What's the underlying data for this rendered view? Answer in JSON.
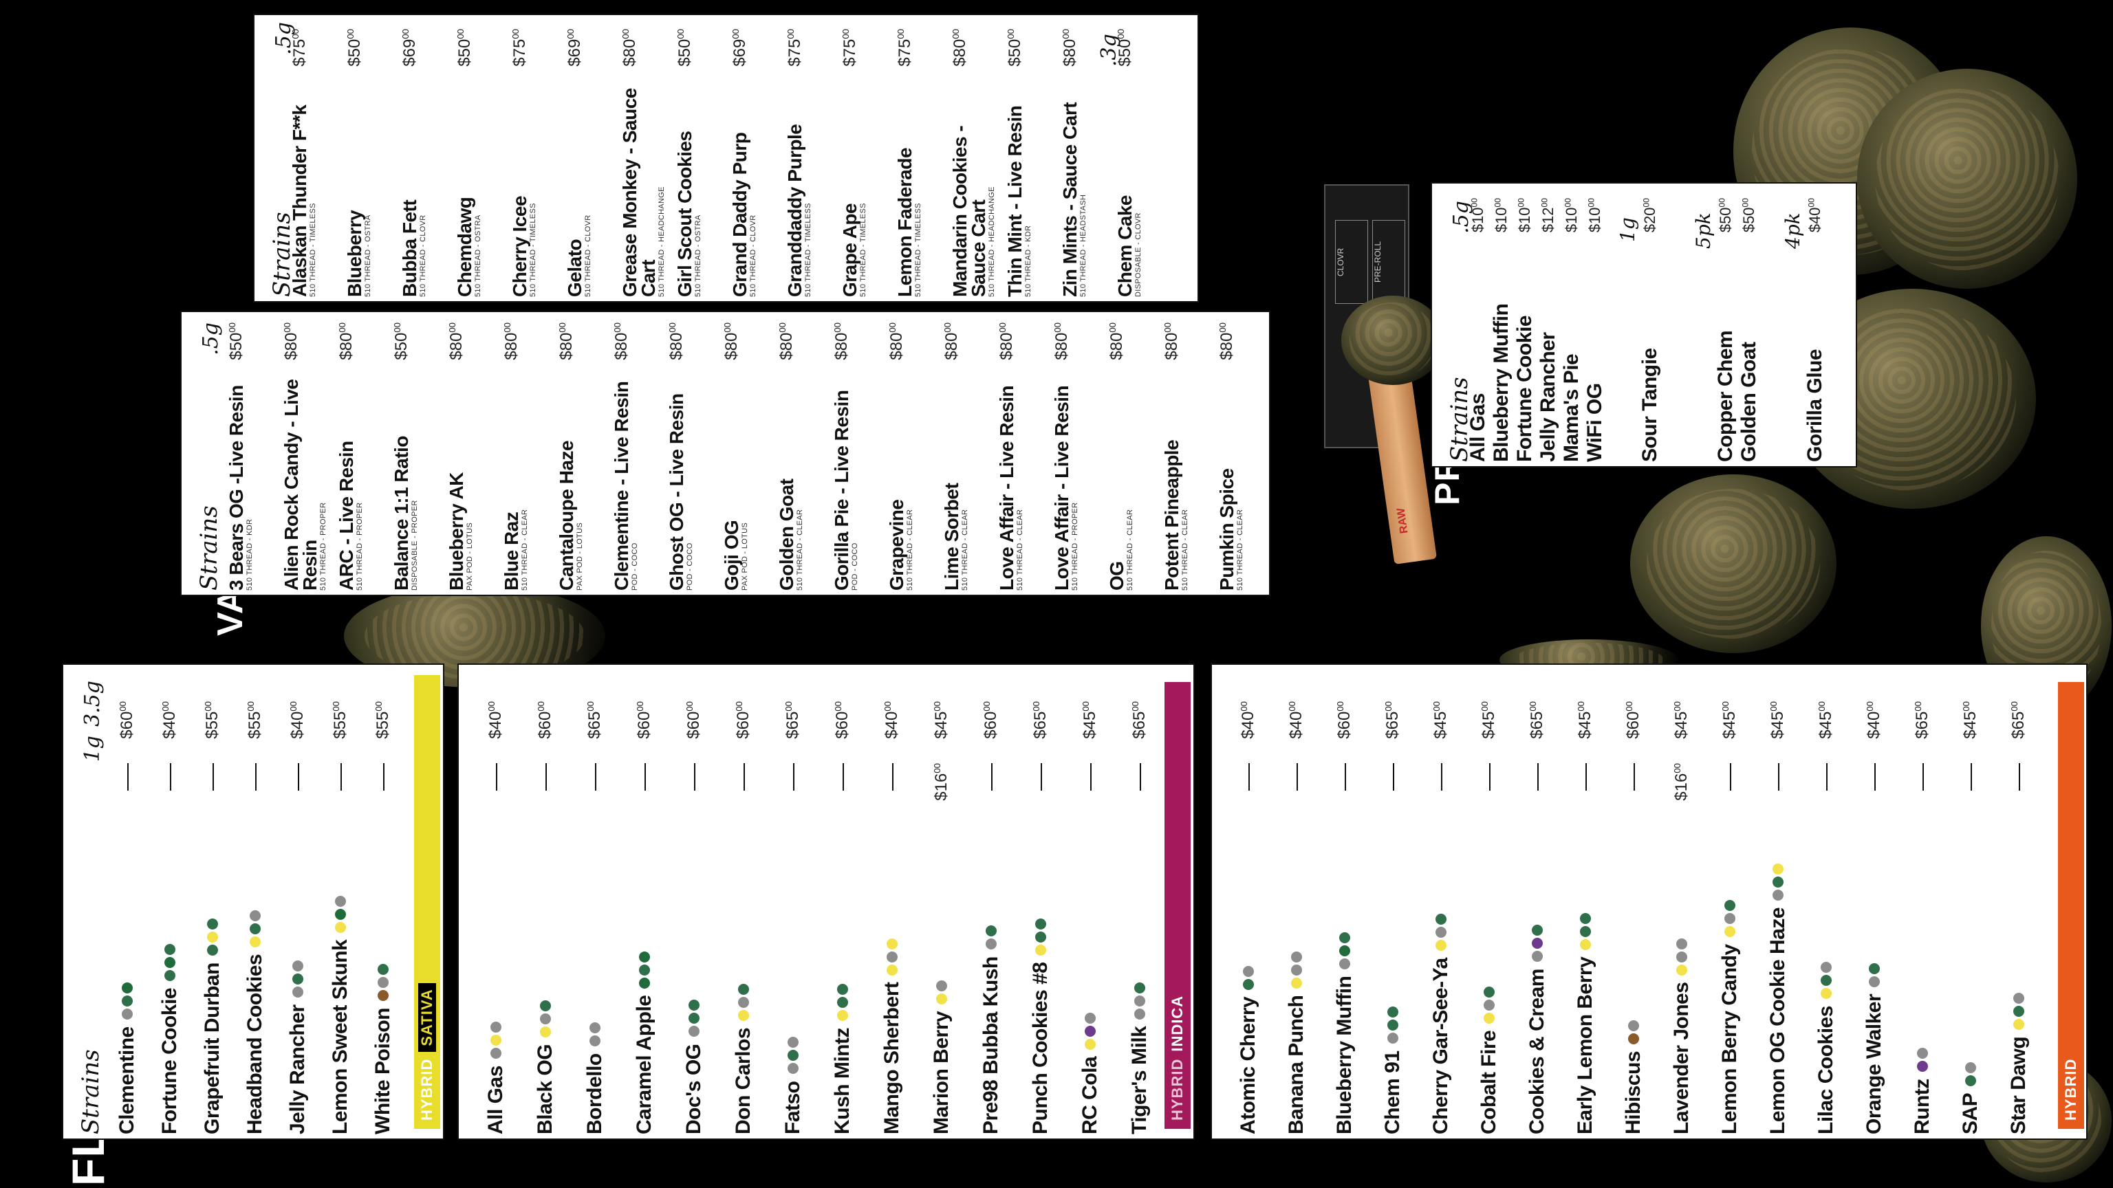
{
  "sections": {
    "flower": "FLOWER",
    "vape": "VAPE",
    "preroll": "PREROLL"
  },
  "headers": {
    "strains": "Strains",
    "flower_c1": "1g",
    "flower_c2": "3.5g",
    "vape_size": ".5g",
    "vape2_size": ".5g",
    "vape2_size_b": ".3g",
    "preroll_c1": ".5g",
    "preroll_c2": "1g",
    "preroll_c3": "5pk",
    "preroll_c4": "4pk"
  },
  "categories": {
    "sativa": "SATIVA",
    "sativa_hybrid": "HYBRID",
    "indica": "INDICA",
    "indica_hybrid": "HYBRID",
    "hybrid": "HYBRID"
  },
  "colors": {
    "sativa": "#e8dd2a",
    "indica": "#a3195b",
    "hybrid": "#e85a1c"
  },
  "flower_sativa": [
    {
      "name": "Clementine",
      "p1": "—",
      "p2": "$60",
      "icons": [
        "drop",
        "pine",
        "leaf"
      ]
    },
    {
      "name": "Fortune Cookie",
      "p1": "—",
      "p2": "$40",
      "icons": [
        "pine",
        "leaf",
        "pine"
      ]
    },
    {
      "name": "Grapefruit Durban",
      "p1": "—",
      "p2": "$55",
      "icons": [
        "pine",
        "lemon",
        "pine"
      ]
    },
    {
      "name": "Headband Cookies",
      "p1": "—",
      "p2": "$55",
      "icons": [
        "lemon",
        "pine",
        "drop"
      ]
    },
    {
      "name": "Jelly Rancher",
      "p1": "—",
      "p2": "$40",
      "icons": [
        "drop",
        "pine",
        "drop"
      ]
    },
    {
      "name": "Lemon Sweet Skunk",
      "p1": "—",
      "p2": "$55",
      "icons": [
        "lemon",
        "leaf",
        "drop"
      ]
    },
    {
      "name": "White Poison",
      "p1": "—",
      "p2": "$55",
      "icons": [
        "wood",
        "drop",
        "pine"
      ]
    }
  ],
  "flower_indica": [
    {
      "name": "All Gas",
      "p1": "—",
      "p2": "$40",
      "icons": [
        "drop",
        "lemon",
        "drop"
      ]
    },
    {
      "name": "Black OG",
      "p1": "—",
      "p2": "$60",
      "icons": [
        "lemon",
        "drop",
        "pine"
      ]
    },
    {
      "name": "Bordello",
      "p1": "—",
      "p2": "$65",
      "icons": [
        "drop",
        "drop"
      ]
    },
    {
      "name": "Caramel Apple",
      "p1": "—",
      "p2": "$60",
      "icons": [
        "leaf",
        "pine",
        "leaf"
      ]
    },
    {
      "name": "Doc's OG",
      "p1": "—",
      "p2": "$60",
      "icons": [
        "drop",
        "pine",
        "pine"
      ]
    },
    {
      "name": "Don Carlos",
      "p1": "—",
      "p2": "$60",
      "icons": [
        "lemon",
        "drop",
        "pine"
      ]
    },
    {
      "name": "Fatso",
      "p1": "—",
      "p2": "$65",
      "icons": [
        "drop",
        "pine",
        "drop"
      ]
    },
    {
      "name": "Kush Mintz",
      "p1": "—",
      "p2": "$60",
      "icons": [
        "lemon",
        "pine",
        "pine"
      ]
    },
    {
      "name": "Mango Sherbert",
      "p1": "—",
      "p2": "$40",
      "icons": [
        "lemon",
        "drop",
        "lemon"
      ]
    },
    {
      "name": "Marion Berry",
      "p1": "$16",
      "p2": "$45",
      "icons": [
        "lemon",
        "drop"
      ]
    },
    {
      "name": "Pre98 Bubba Kush",
      "p1": "—",
      "p2": "$60",
      "icons": [
        "drop",
        "pine"
      ]
    },
    {
      "name": "Punch Cookies #8",
      "p1": "—",
      "p2": "$65",
      "icons": [
        "lemon",
        "pine",
        "pine"
      ]
    },
    {
      "name": "RC Cola",
      "p1": "—",
      "p2": "$45",
      "icons": [
        "lemon",
        "berry",
        "drop"
      ]
    },
    {
      "name": "Tiger's Milk",
      "p1": "—",
      "p2": "$65",
      "icons": [
        "drop",
        "drop",
        "pine"
      ]
    }
  ],
  "flower_hybrid": [
    {
      "name": "Atomic Cherry",
      "p1": "—",
      "p2": "$40",
      "icons": [
        "pine",
        "drop"
      ]
    },
    {
      "name": "Banana Punch",
      "p1": "—",
      "p2": "$40",
      "icons": [
        "lemon",
        "drop",
        "drop"
      ]
    },
    {
      "name": "Blueberry Muffin",
      "p1": "—",
      "p2": "$60",
      "icons": [
        "drop",
        "leaf",
        "pine"
      ]
    },
    {
      "name": "Chem 91",
      "p1": "—",
      "p2": "$65",
      "icons": [
        "drop",
        "pine",
        "pine"
      ]
    },
    {
      "name": "Cherry Gar-See-Ya",
      "p1": "—",
      "p2": "$45",
      "icons": [
        "lemon",
        "drop",
        "pine"
      ]
    },
    {
      "name": "Cobalt Fire",
      "p1": "—",
      "p2": "$45",
      "icons": [
        "lemon",
        "drop",
        "pine"
      ]
    },
    {
      "name": "Cookies & Cream",
      "p1": "—",
      "p2": "$65",
      "icons": [
        "drop",
        "berry",
        "pine"
      ]
    },
    {
      "name": "Early Lemon Berry",
      "p1": "—",
      "p2": "$45",
      "icons": [
        "lemon",
        "pine",
        "pine"
      ]
    },
    {
      "name": "Hibiscus",
      "p1": "—",
      "p2": "$60",
      "icons": [
        "wood",
        "drop"
      ]
    },
    {
      "name": "Lavender Jones",
      "p1": "$16",
      "p2": "$45",
      "icons": [
        "lemon",
        "drop",
        "drop"
      ]
    },
    {
      "name": "Lemon Berry Candy",
      "p1": "—",
      "p2": "$45",
      "icons": [
        "lemon",
        "drop",
        "pine"
      ]
    },
    {
      "name": "Lemon OG Cookie Haze",
      "p1": "—",
      "p2": "$45",
      "icons": [
        "drop",
        "pine",
        "lemon"
      ]
    },
    {
      "name": "Lilac Cookies",
      "p1": "—",
      "p2": "$45",
      "icons": [
        "lemon",
        "pine",
        "drop"
      ]
    },
    {
      "name": "Orange Walker",
      "p1": "—",
      "p2": "$40",
      "icons": [
        "drop",
        "pine"
      ]
    },
    {
      "name": "Runtz",
      "p1": "—",
      "p2": "$65",
      "icons": [
        "berry",
        "drop"
      ]
    },
    {
      "name": "SAP",
      "p1": "—",
      "p2": "$45",
      "icons": [
        "pine",
        "drop"
      ]
    },
    {
      "name": "Star Dawg",
      "p1": "—",
      "p2": "$65",
      "icons": [
        "lemon",
        "pine",
        "drop"
      ]
    }
  ],
  "vape": [
    {
      "name": "3 Bears OG -Live Resin",
      "sub": "510 THREAD - KDR",
      "price": "$50"
    },
    {
      "name": "Alien Rock Candy - Live Resin",
      "sub": "510 THREAD - PROPER",
      "price": "$80"
    },
    {
      "name": "ARC - Live Resin",
      "sub": "510 THREAD - PROPER",
      "price": "$80"
    },
    {
      "name": "Balance 1:1 Ratio",
      "sub": "DISPOSABLE - PROPER",
      "price": "$50"
    },
    {
      "name": "Blueberry AK",
      "sub": "PAX POD - LOTUS",
      "price": "$80"
    },
    {
      "name": "Blue Raz",
      "sub": "510 THREAD - CLEAR",
      "price": "$80"
    },
    {
      "name": "Cantaloupe Haze",
      "sub": "PAX POD - LOTUS",
      "price": "$80"
    },
    {
      "name": "Clementine - Live Resin",
      "sub": "POD - COCO",
      "price": "$80"
    },
    {
      "name": "Ghost OG - Live Resin",
      "sub": "POD - COCO",
      "price": "$80"
    },
    {
      "name": "Goji OG",
      "sub": "PAX POD - LOTUS",
      "price": "$80"
    },
    {
      "name": "Golden Goat",
      "sub": "510 THREAD - CLEAR",
      "price": "$80"
    },
    {
      "name": "Gorilla Pie - Live Resin",
      "sub": "POD - COCO",
      "price": "$80"
    },
    {
      "name": "Grapevine",
      "sub": "510 THREAD - CLEAR",
      "price": "$80"
    },
    {
      "name": "Lime Sorbet",
      "sub": "510 THREAD - CLEAR",
      "price": "$80"
    },
    {
      "name": "Love Affair - Live Resin",
      "sub": "510 THREAD - CLEAR",
      "price": "$80"
    },
    {
      "name": "Love Affair - Live Resin",
      "sub": "510 THREAD - PROPER",
      "price": "$80"
    },
    {
      "name": "OG",
      "sub": "510 THREAD - CLEAR",
      "price": "$80"
    },
    {
      "name": "Potent Pineapple",
      "sub": "510 THREAD - CLEAR",
      "price": "$80"
    },
    {
      "name": "Pumkin Spice",
      "sub": "510 THREAD - CLEAR",
      "price": "$80"
    }
  ],
  "vape2": [
    {
      "name": "Alaskan Thunder F**k",
      "sub": "510 THREAD - TIMELESS",
      "price": "$75"
    },
    {
      "name": "Blueberry",
      "sub": "510 THREAD - OSTRA",
      "price": "$50"
    },
    {
      "name": "Bubba Fett",
      "sub": "510 THREAD - CLOVR",
      "price": "$69"
    },
    {
      "name": "Chemdawg",
      "sub": "510 THREAD - OSTRA",
      "price": "$50"
    },
    {
      "name": "Cherry Icee",
      "sub": "510 THREAD - TIMELESS",
      "price": "$75"
    },
    {
      "name": "Gelato",
      "sub": "510 THREAD - CLOVR",
      "price": "$69"
    },
    {
      "name": "Grease Monkey - Sauce Cart",
      "sub": "510 THREAD - HEADCHANGE",
      "price": "$80"
    },
    {
      "name": "Girl Scout Cookies",
      "sub": "510 THREAD - OSTRA",
      "price": "$50"
    },
    {
      "name": "Grand Daddy Purp",
      "sub": "510 THREAD - CLOVR",
      "price": "$69"
    },
    {
      "name": "Granddaddy Purple",
      "sub": "510 THREAD - TIMELESS",
      "price": "$75"
    },
    {
      "name": "Grape Ape",
      "sub": "510 THREAD - TIMELESS",
      "price": "$75"
    },
    {
      "name": "Lemon Faderade",
      "sub": "510 THREAD - TIMELESS",
      "price": "$75"
    },
    {
      "name": "Mandarin Cookies - Sauce Cart",
      "sub": "510 THREAD - HEADCHANGE",
      "price": "$80"
    },
    {
      "name": "Thin Mint - Live Resin",
      "sub": "510 THREAD - KDR",
      "price": "$50"
    },
    {
      "name": "Zin Mints - Sauce Cart",
      "sub": "510 THREAD - HEADSTASH",
      "price": "$80"
    },
    {
      "name": "Chem Cake",
      "sub": "DISPOSABLE - CLOVR",
      "price": "$50"
    }
  ],
  "preroll": [
    {
      "name": "All Gas",
      "price": "$10"
    },
    {
      "name": "Blueberry Muffin",
      "price": "$10"
    },
    {
      "name": "Fortune Cookie",
      "price": "$10"
    },
    {
      "name": "Jelly Rancher",
      "price": "$12"
    },
    {
      "name": "Mama's Pie",
      "price": "$10"
    },
    {
      "name": "WiFi OG",
      "price": "$10"
    },
    {
      "name": "Sour Tangie",
      "price": "$20"
    },
    {
      "name": "Copper Chem",
      "price": "$50"
    },
    {
      "name": "Golden Goat",
      "price": "$50"
    },
    {
      "name": "Gorilla Glue",
      "price": "$40"
    }
  ],
  "package_text": {
    "brand": "CLOVR",
    "label": "PRE-ROLL",
    "cone": "RAW"
  }
}
